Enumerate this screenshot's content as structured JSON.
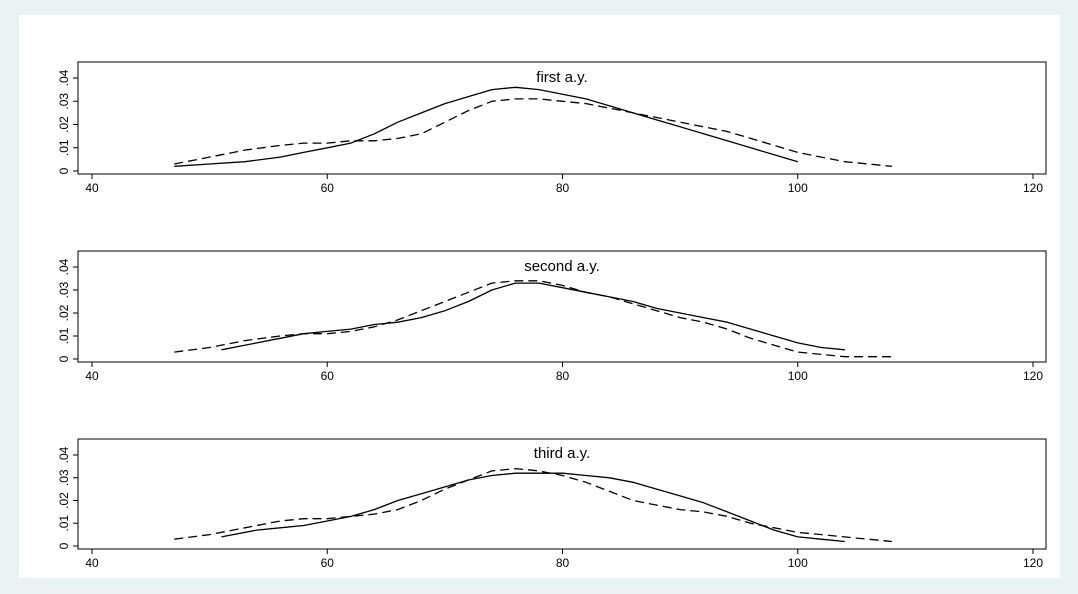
{
  "chart_data": [
    {
      "type": "line",
      "title": "first a.y.",
      "xlim": [
        40,
        120
      ],
      "ylim": [
        0,
        0.04
      ],
      "x_ticks": [
        40,
        60,
        80,
        100,
        120
      ],
      "x_tick_labels": [
        "40",
        "60",
        "80",
        "100",
        "120"
      ],
      "y_ticks": [
        0,
        0.01,
        0.02,
        0.03,
        0.04
      ],
      "y_tick_labels": [
        "0",
        ".01",
        ".02",
        ".03",
        ".04"
      ],
      "series": [
        {
          "style": "solid",
          "x": [
            47,
            50,
            53,
            56,
            58,
            60,
            62,
            64,
            66,
            68,
            70,
            72,
            74,
            76,
            78,
            80,
            82,
            84,
            86,
            88,
            90,
            92,
            94,
            96,
            98,
            100
          ],
          "y": [
            0.002,
            0.003,
            0.004,
            0.006,
            0.008,
            0.01,
            0.012,
            0.016,
            0.021,
            0.025,
            0.029,
            0.032,
            0.035,
            0.036,
            0.035,
            0.033,
            0.031,
            0.028,
            0.025,
            0.022,
            0.019,
            0.016,
            0.013,
            0.01,
            0.007,
            0.004
          ]
        },
        {
          "style": "dashed",
          "x": [
            47,
            50,
            53,
            56,
            58,
            60,
            62,
            64,
            66,
            68,
            70,
            72,
            74,
            76,
            78,
            80,
            82,
            84,
            86,
            88,
            90,
            92,
            94,
            96,
            98,
            100,
            102,
            104,
            106,
            108
          ],
          "y": [
            0.003,
            0.006,
            0.009,
            0.011,
            0.012,
            0.012,
            0.013,
            0.013,
            0.014,
            0.016,
            0.021,
            0.026,
            0.03,
            0.031,
            0.031,
            0.03,
            0.029,
            0.027,
            0.025,
            0.023,
            0.021,
            0.019,
            0.017,
            0.014,
            0.011,
            0.008,
            0.006,
            0.004,
            0.003,
            0.002
          ]
        }
      ]
    },
    {
      "type": "line",
      "title": "second a.y.",
      "xlim": [
        40,
        120
      ],
      "ylim": [
        0,
        0.04
      ],
      "x_ticks": [
        40,
        60,
        80,
        100,
        120
      ],
      "x_tick_labels": [
        "40",
        "60",
        "80",
        "100",
        "120"
      ],
      "y_ticks": [
        0,
        0.01,
        0.02,
        0.03,
        0.04
      ],
      "y_tick_labels": [
        "0",
        ".01",
        ".02",
        ".03",
        ".04"
      ],
      "series": [
        {
          "style": "solid",
          "x": [
            51,
            54,
            56,
            58,
            60,
            62,
            64,
            66,
            68,
            70,
            72,
            74,
            76,
            78,
            80,
            82,
            84,
            86,
            88,
            90,
            92,
            94,
            96,
            98,
            100,
            102,
            104
          ],
          "y": [
            0.004,
            0.007,
            0.009,
            0.011,
            0.012,
            0.013,
            0.015,
            0.016,
            0.018,
            0.021,
            0.025,
            0.03,
            0.033,
            0.033,
            0.031,
            0.029,
            0.027,
            0.025,
            0.022,
            0.02,
            0.018,
            0.016,
            0.013,
            0.01,
            0.007,
            0.005,
            0.004
          ]
        },
        {
          "style": "dashed",
          "x": [
            47,
            50,
            53,
            56,
            58,
            60,
            62,
            64,
            66,
            68,
            70,
            72,
            74,
            76,
            78,
            80,
            82,
            84,
            86,
            88,
            90,
            92,
            94,
            96,
            98,
            100,
            102,
            104,
            106,
            108
          ],
          "y": [
            0.003,
            0.005,
            0.008,
            0.01,
            0.011,
            0.011,
            0.012,
            0.014,
            0.017,
            0.021,
            0.025,
            0.029,
            0.033,
            0.034,
            0.034,
            0.032,
            0.029,
            0.027,
            0.024,
            0.021,
            0.018,
            0.016,
            0.013,
            0.009,
            0.006,
            0.003,
            0.002,
            0.001,
            0.001,
            0.001
          ]
        }
      ]
    },
    {
      "type": "line",
      "title": "third a.y.",
      "xlim": [
        40,
        120
      ],
      "ylim": [
        0,
        0.04
      ],
      "x_ticks": [
        40,
        60,
        80,
        100,
        120
      ],
      "x_tick_labels": [
        "40",
        "60",
        "80",
        "100",
        "120"
      ],
      "y_ticks": [
        0,
        0.01,
        0.02,
        0.03,
        0.04
      ],
      "y_tick_labels": [
        "0",
        ".01",
        ".02",
        ".03",
        ".04"
      ],
      "series": [
        {
          "style": "solid",
          "x": [
            51,
            54,
            56,
            58,
            60,
            62,
            64,
            66,
            68,
            70,
            72,
            74,
            76,
            78,
            80,
            82,
            84,
            86,
            88,
            90,
            92,
            94,
            96,
            98,
            100,
            102,
            104
          ],
          "y": [
            0.004,
            0.007,
            0.008,
            0.009,
            0.011,
            0.013,
            0.016,
            0.02,
            0.023,
            0.026,
            0.029,
            0.031,
            0.032,
            0.032,
            0.032,
            0.031,
            0.03,
            0.028,
            0.025,
            0.022,
            0.019,
            0.015,
            0.011,
            0.007,
            0.004,
            0.003,
            0.002
          ]
        },
        {
          "style": "dashed",
          "x": [
            47,
            50,
            53,
            56,
            58,
            60,
            62,
            64,
            66,
            68,
            70,
            72,
            74,
            76,
            78,
            80,
            82,
            84,
            86,
            88,
            90,
            92,
            94,
            96,
            98,
            100,
            102,
            104,
            106,
            108
          ],
          "y": [
            0.003,
            0.005,
            0.008,
            0.011,
            0.012,
            0.012,
            0.013,
            0.014,
            0.016,
            0.02,
            0.025,
            0.029,
            0.033,
            0.034,
            0.033,
            0.031,
            0.028,
            0.024,
            0.02,
            0.018,
            0.016,
            0.015,
            0.013,
            0.01,
            0.008,
            0.006,
            0.005,
            0.004,
            0.003,
            0.002
          ]
        }
      ]
    }
  ]
}
